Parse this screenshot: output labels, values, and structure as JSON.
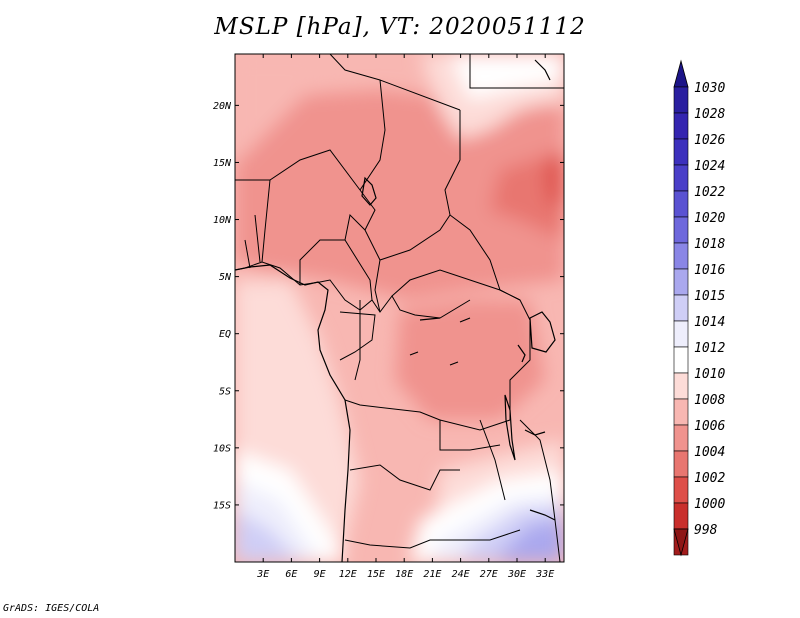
{
  "title": "MSLP [hPa], VT: 2020051112",
  "credit": "GrADS: IGES/COLA",
  "map": {
    "variable": "MSLP",
    "units": "hPa",
    "valid_time": "2020051112",
    "lon_range": [
      0,
      35
    ],
    "lat_range": [
      -20,
      24.5
    ],
    "lon_ticks": [
      {
        "value": 3,
        "label": "3E"
      },
      {
        "value": 6,
        "label": "6E"
      },
      {
        "value": 9,
        "label": "9E"
      },
      {
        "value": 12,
        "label": "12E"
      },
      {
        "value": 15,
        "label": "15E"
      },
      {
        "value": 18,
        "label": "18E"
      },
      {
        "value": 21,
        "label": "21E"
      },
      {
        "value": 24,
        "label": "24E"
      },
      {
        "value": 27,
        "label": "27E"
      },
      {
        "value": 30,
        "label": "30E"
      },
      {
        "value": 33,
        "label": "33E"
      }
    ],
    "lat_ticks": [
      {
        "value": 20,
        "label": "20N"
      },
      {
        "value": 15,
        "label": "15N"
      },
      {
        "value": 10,
        "label": "10N"
      },
      {
        "value": 5,
        "label": "5N"
      },
      {
        "value": 0,
        "label": "EQ"
      },
      {
        "value": -5,
        "label": "5S"
      },
      {
        "value": -10,
        "label": "10S"
      },
      {
        "value": -15,
        "label": "15S"
      }
    ]
  },
  "colorbar": {
    "levels": [
      {
        "label": "1030",
        "color": "#2a1fa0"
      },
      {
        "label": "1028",
        "color": "#3425b0"
      },
      {
        "label": "1026",
        "color": "#3c30bd"
      },
      {
        "label": "1024",
        "color": "#4a3fc8"
      },
      {
        "label": "1022",
        "color": "#5a52d2"
      },
      {
        "label": "1020",
        "color": "#6e68dc"
      },
      {
        "label": "1018",
        "color": "#8a86e6"
      },
      {
        "label": "1016",
        "color": "#aaa8ee"
      },
      {
        "label": "1015",
        "color": "#cfcef6"
      },
      {
        "label": "1014",
        "color": "#eeeefc"
      },
      {
        "label": "1012",
        "color": "#ffffff"
      },
      {
        "label": "1010",
        "color": "#fddcd8"
      },
      {
        "label": "1008",
        "color": "#f8b7b2"
      },
      {
        "label": "1006",
        "color": "#f0938e"
      },
      {
        "label": "1004",
        "color": "#e87670"
      },
      {
        "label": "1002",
        "color": "#de4f49"
      },
      {
        "label": "1000",
        "color": "#c92f2c"
      },
      {
        "label": "998",
        "color": "#a21c1c"
      }
    ],
    "top_arrow_color": "#1c1488",
    "bottom_arrow_color": "#8e1616"
  }
}
